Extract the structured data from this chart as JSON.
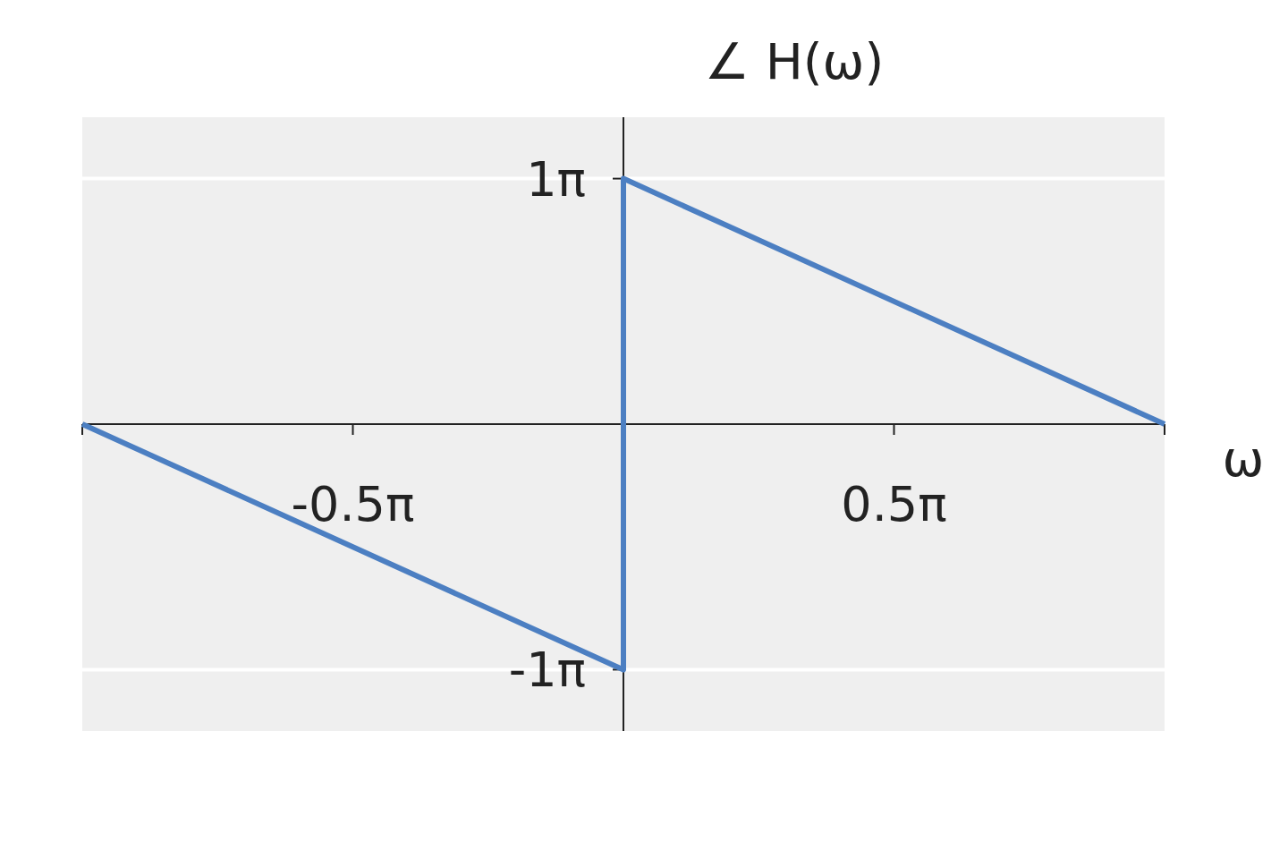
{
  "chart_data": {
    "type": "line",
    "title": "∠ H(ω)",
    "xlabel": "ω",
    "x": [
      -3.1416,
      0,
      0,
      3.1416
    ],
    "series": [
      {
        "color": "#4c7fc2",
        "values": [
          0,
          -3.1416,
          3.1416,
          0
        ]
      }
    ],
    "xlim": [
      -3.1416,
      3.1416
    ],
    "ylim": [
      -3.927,
      3.927
    ],
    "xticks": [
      {
        "value": -3.1416,
        "label": null
      },
      {
        "value": -1.5708,
        "label": "-0.5π"
      },
      {
        "value": 1.5708,
        "label": "0.5π"
      },
      {
        "value": 3.1416,
        "label": null
      }
    ],
    "yticks": [
      {
        "value": -3.1416,
        "label": "-1π"
      },
      {
        "value": 3.1416,
        "label": "1π"
      }
    ],
    "grid": "y",
    "marker": "none",
    "line_style": "solid"
  }
}
